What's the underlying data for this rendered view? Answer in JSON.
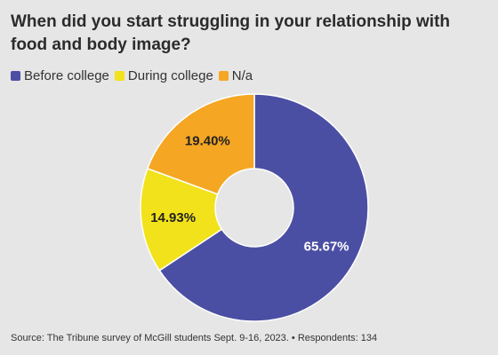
{
  "title": "When did you start struggling in your relationship with food and body image?",
  "source": "Source: The Tribune survey of McGill students Sept. 9-16, 2023. • Respondents: 134",
  "chart_data": {
    "type": "pie",
    "donut": true,
    "legend_position": "top-left",
    "categories": [
      "Before college",
      "During college",
      "N/a"
    ],
    "values": [
      65.67,
      14.93,
      19.4
    ],
    "labels": [
      "65.67%",
      "14.93%",
      "19.40%"
    ],
    "colors": [
      "#4b4fa3",
      "#f2e21b",
      "#f5a623"
    ],
    "label_colors": [
      "#ffffff",
      "#222222",
      "#222222"
    ]
  }
}
